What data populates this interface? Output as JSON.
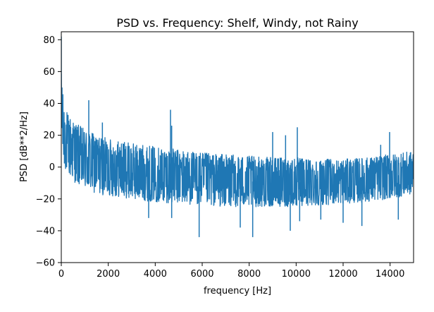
{
  "chart_data": {
    "type": "line",
    "title": "PSD vs. Frequency: Shelf, Windy, not Rainy",
    "xlabel": "frequency [Hz]",
    "ylabel": "PSD [dB**2/Hz]",
    "xlim": [
      0,
      15000
    ],
    "ylim": [
      -60,
      85
    ],
    "xticks": [
      0,
      2000,
      4000,
      6000,
      8000,
      10000,
      12000,
      14000
    ],
    "xtick_labels": [
      "0",
      "2000",
      "4000",
      "6000",
      "8000",
      "10000",
      "12000",
      "14000"
    ],
    "yticks": [
      -60,
      -40,
      -20,
      0,
      20,
      40,
      60,
      80
    ],
    "ytick_labels": [
      "−60",
      "−40",
      "−20",
      "0",
      "20",
      "40",
      "60",
      "80"
    ],
    "grid": false,
    "series": [
      {
        "color": "#1f77b4",
        "baseline": {
          "x": [
            0,
            100,
            300,
            600,
            1000,
            1500,
            2000,
            3000,
            4000,
            5000,
            6000,
            7000,
            8000,
            9000,
            10000,
            11000,
            12000,
            13000,
            14000,
            15000
          ],
          "upper": [
            60,
            40,
            33,
            28,
            24,
            20,
            18,
            15,
            13,
            11,
            9,
            8,
            7,
            6,
            6,
            5,
            5,
            6,
            8,
            10
          ],
          "lower": [
            20,
            0,
            -5,
            -10,
            -14,
            -17,
            -18,
            -20,
            -22,
            -23,
            -24,
            -25,
            -25,
            -25,
            -25,
            -24,
            -23,
            -22,
            -20,
            -17
          ]
        },
        "peaks": [
          {
            "x": 0,
            "y": 82
          },
          {
            "x": 30,
            "y": 50
          },
          {
            "x": 1170,
            "y": 42
          },
          {
            "x": 1750,
            "y": 28
          },
          {
            "x": 4650,
            "y": 36
          },
          {
            "x": 4700,
            "y": 26
          },
          {
            "x": 9000,
            "y": 22
          },
          {
            "x": 9550,
            "y": 20
          },
          {
            "x": 10050,
            "y": 25
          },
          {
            "x": 13980,
            "y": 22
          },
          {
            "x": 13600,
            "y": 14
          }
        ],
        "dips": [
          {
            "x": 3720,
            "y": -32
          },
          {
            "x": 4700,
            "y": -32
          },
          {
            "x": 5870,
            "y": -44
          },
          {
            "x": 7620,
            "y": -38
          },
          {
            "x": 8150,
            "y": -44
          },
          {
            "x": 9750,
            "y": -40
          },
          {
            "x": 10150,
            "y": -34
          },
          {
            "x": 11050,
            "y": -33
          },
          {
            "x": 12000,
            "y": -35
          },
          {
            "x": 12800,
            "y": -37
          },
          {
            "x": 14350,
            "y": -33
          }
        ]
      }
    ]
  }
}
